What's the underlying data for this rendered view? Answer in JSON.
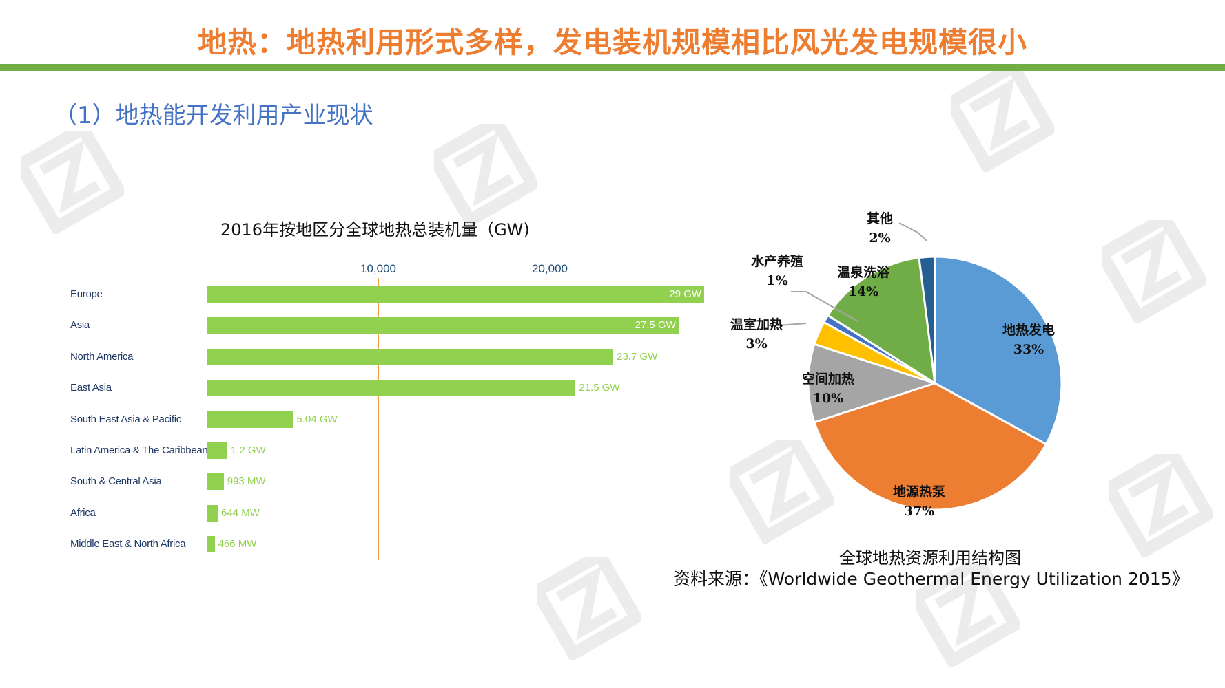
{
  "slide": {
    "title": "地热：地热利用形式多样，发电装机规模相比风光发电规模很小",
    "subtitle": "（1）地热能开发利用产业现状",
    "colors": {
      "title": "#ED7D31",
      "title_bar": "#70AD47",
      "subtitle": "#4472C4",
      "bar": "#92D050",
      "gridline": "#F0A040"
    }
  },
  "bar_chart": {
    "title": "2016年按地区分全球地热总装机量（GW)",
    "ticks": [
      "10,000",
      "20,000"
    ]
  },
  "pie_chart": {
    "caption": "全球地热资源利用结构图",
    "source": "资料来源：《Worldwide Geothermal Energy Utilization 2015》"
  },
  "chart_data": [
    {
      "type": "bar",
      "orientation": "horizontal",
      "title": "2016年按地区分全球地热总装机量（GW)",
      "xlabel": "",
      "ylabel": "",
      "xlim": [
        0,
        29000
      ],
      "xticks": [
        10000,
        20000
      ],
      "xtick_labels": [
        "10,000",
        "20,000"
      ],
      "grid": true,
      "unit": "MW",
      "categories": [
        "Europe",
        "Asia",
        "North America",
        "East Asia",
        "South East Asia & Pacific",
        "Latin America & The Caribbean",
        "South & Central Asia",
        "Africa",
        "Middle East & North Africa"
      ],
      "values": [
        29000,
        27500,
        23700,
        21500,
        5040,
        1200,
        993,
        644,
        466
      ],
      "value_labels": [
        "29 GW",
        "27.5 GW",
        "23.7 GW",
        "21.5 GW",
        "5.04 GW",
        "1.2 GW",
        "993 MW",
        "644 MW",
        "466 MW"
      ]
    },
    {
      "type": "pie",
      "title": "全球地热资源利用结构图",
      "categories": [
        "地热发电",
        "地源热泵",
        "空间加热",
        "温室加热",
        "水产养殖",
        "温泉洗浴",
        "其他"
      ],
      "values": [
        33,
        37,
        10,
        3,
        1,
        14,
        2
      ],
      "value_labels": [
        "33%",
        "37%",
        "10%",
        "3%",
        "1%",
        "14%",
        "2%"
      ],
      "colors": [
        "#5B9BD5",
        "#ED7D31",
        "#A5A5A5",
        "#FFC000",
        "#4472C4",
        "#70AD47",
        "#255E91"
      ],
      "start_angle": "12 o'clock, clockwise",
      "legend": "none (data labels)"
    }
  ]
}
